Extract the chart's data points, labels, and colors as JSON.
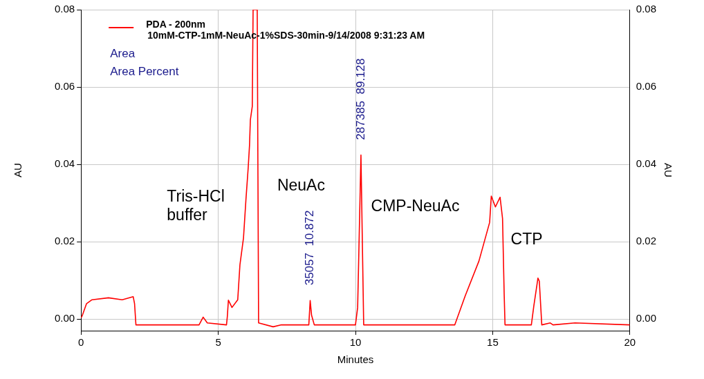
{
  "chart_data": {
    "type": "line",
    "title": "10mM-CTP-1mM-NeuAc-1%SDS-30min-9/14/2008 9:31:23 AM",
    "xlabel": "Minutes",
    "ylabel": "AU",
    "y2label": "AU",
    "xlim": [
      0,
      20
    ],
    "xticks": [
      0,
      5,
      10,
      15,
      20
    ],
    "ylim": [
      -0.003,
      0.08
    ],
    "yticks": [
      {
        "value": 0,
        "label": "0.00"
      },
      {
        "value": 0.02,
        "label": "0.02"
      },
      {
        "value": 0.04,
        "label": "0.04"
      },
      {
        "value": 0.06,
        "label": "0.06"
      },
      {
        "value": 0.08,
        "label": "0.08"
      }
    ],
    "y2lim": [
      -0.003,
      0.08
    ],
    "y2ticks": [
      {
        "value": 0,
        "label": "0.00"
      },
      {
        "value": 0.02,
        "label": "0.02"
      },
      {
        "value": 0.04,
        "label": "0.04"
      },
      {
        "value": 0.06,
        "label": "0.06"
      },
      {
        "value": 0.08,
        "label": "0.08"
      }
    ],
    "grid": true,
    "legend": "top left",
    "marker": "none",
    "line_style": "solid",
    "series": [
      {
        "name": "PDA - 200nm",
        "color": "#ff0000",
        "x": [
          0,
          0.05,
          0.2,
          0.4,
          1.0,
          1.5,
          1.9,
          1.95,
          2.0,
          4.3,
          4.45,
          4.6,
          5.3,
          5.33,
          5.37,
          5.5,
          5.71,
          5.79,
          5.92,
          6.01,
          6.09,
          6.14,
          6.17,
          6.24,
          6.27,
          6.42,
          6.47,
          7.0,
          7.3,
          8.3,
          8.35,
          8.4,
          8.5,
          10.0,
          10.08,
          10.2,
          10.3,
          13.62,
          14.0,
          14.5,
          14.89,
          14.95,
          15.1,
          15.27,
          15.36,
          15.42,
          15.45,
          16.41,
          16.5,
          16.65,
          16.7,
          16.79,
          17.1,
          17.2,
          18.0,
          20
        ],
        "values": [
          0.0003,
          0.001,
          0.004,
          0.005,
          0.0055,
          0.005,
          0.0058,
          0.004,
          -0.0015,
          -0.0015,
          0.0005,
          -0.001,
          -0.0015,
          0.0006,
          0.0049,
          0.003,
          0.005,
          0.014,
          0.021,
          0.031,
          0.039,
          0.045,
          0.0515,
          0.055,
          0.08,
          0.08,
          -0.001,
          -0.002,
          -0.0015,
          -0.0015,
          0.0048,
          0.001,
          -0.0015,
          -0.0015,
          0.003,
          0.0424,
          -0.0015,
          -0.0015,
          0.006,
          0.015,
          0.025,
          0.0318,
          0.029,
          0.0315,
          0.026,
          0.0063,
          -0.0015,
          -0.0015,
          0.0034,
          0.0106,
          0.0098,
          -0.0015,
          -0.001,
          -0.0015,
          -0.001,
          -0.0015
        ]
      }
    ],
    "annotations": [
      "Area",
      "Area Percent",
      {
        "text": "35057  10.872",
        "x": 8.35,
        "y": 0.0048
      },
      {
        "text": "287385  89.128",
        "x": 10.2,
        "y": 0.0424
      },
      "Tris-HCl buffer",
      "NeuAc",
      "CMP-NeuAc",
      "CTP"
    ]
  }
}
